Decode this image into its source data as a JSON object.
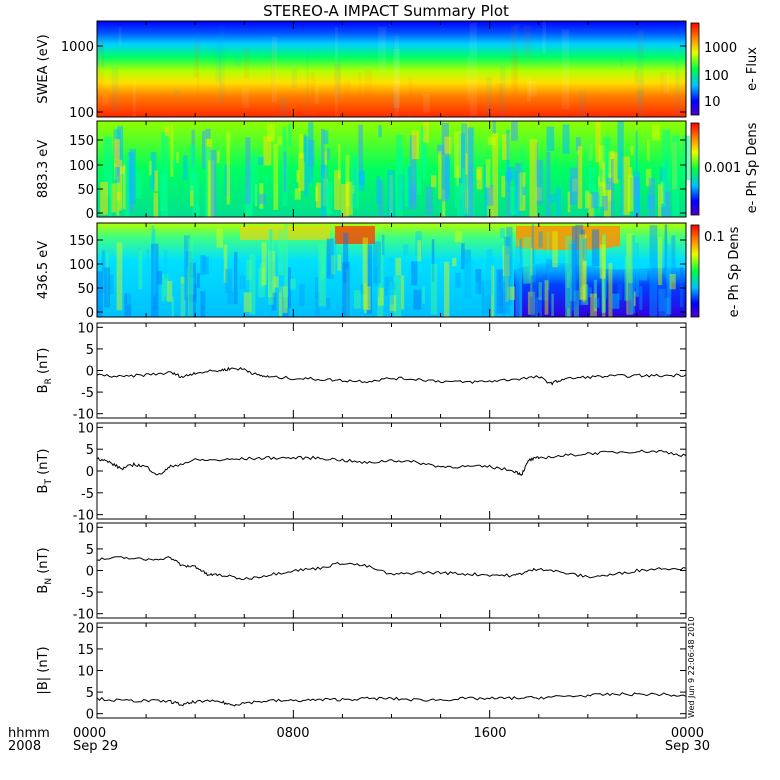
{
  "chart_data": {
    "title": "STEREO-A IMPACT Summary Plot",
    "x_axis": {
      "range": [
        "2008-09-29T00:00",
        "2008-09-30T00:00"
      ],
      "tick_times": [
        "0000",
        "0800",
        "1600",
        "0000"
      ],
      "tick_dates": [
        "Sep 29",
        "",
        "",
        "Sep 30"
      ],
      "label_line1": "hhmm",
      "label_line2": "2008"
    },
    "timestamp": "Wed Jun 9 22:06:48 2010",
    "spectrograms": [
      {
        "name": "swea",
        "type": "heatmap",
        "ylabel": "SWEA (eV)",
        "y_scale": "log",
        "ylim": [
          100,
          1900
        ],
        "y_ticks": [
          "1000",
          "100"
        ],
        "colorbar_label": "e- Flux",
        "colorbar_ticks": [
          "1000",
          "100",
          "10"
        ],
        "color_scale": "rainbow (blue=low, red=high)"
      },
      {
        "name": "pad_883",
        "type": "heatmap",
        "ylabel": "883.3 eV",
        "ylim": [
          0,
          180
        ],
        "y_ticks": [
          "150",
          "100",
          "50",
          "0"
        ],
        "colorbar_label": "e- Ph Sp Dens",
        "colorbar_ticks": [
          "0.001"
        ]
      },
      {
        "name": "pad_436",
        "type": "heatmap",
        "ylabel": "436.5 eV",
        "ylim": [
          0,
          180
        ],
        "y_ticks": [
          "150",
          "100",
          "50",
          "0"
        ],
        "colorbar_label": "e- Ph Sp Dens",
        "colorbar_ticks": [
          "0.1"
        ]
      }
    ],
    "line_panels": [
      {
        "name": "BR",
        "type": "line",
        "ylabel_main": "B",
        "ylabel_sub": "R",
        "ylabel_unit": " (nT)",
        "ylim": [
          -11,
          11
        ],
        "y_ticks": [
          "10",
          "5",
          "0",
          "-5",
          "-10"
        ],
        "hours": [
          0,
          1,
          2,
          3,
          3.5,
          4,
          5,
          5.5,
          6,
          6.5,
          7,
          8,
          9,
          10,
          11,
          12,
          13,
          14,
          15,
          16,
          17,
          18,
          18.5,
          19,
          20,
          21,
          22,
          23,
          24
        ],
        "values": [
          -1.0,
          -1.5,
          -1.0,
          -0.5,
          -1.5,
          -0.5,
          0.0,
          0.5,
          0.3,
          -1.0,
          -1.5,
          -1.8,
          -2.0,
          -2.3,
          -2.5,
          -1.8,
          -2.0,
          -2.5,
          -2.7,
          -2.5,
          -2.0,
          -1.5,
          -3.0,
          -2.0,
          -1.5,
          -1.3,
          -1.2,
          -1.2,
          -1.0
        ]
      },
      {
        "name": "BT",
        "type": "line",
        "ylabel_main": "B",
        "ylabel_sub": "T",
        "ylabel_unit": " (nT)",
        "ylim": [
          -11,
          11
        ],
        "y_ticks": [
          "10",
          "5",
          "0",
          "-5",
          "-10"
        ],
        "hours": [
          0,
          0.5,
          1,
          1.5,
          2,
          2.5,
          3,
          4,
          5,
          6,
          7,
          8,
          9,
          10,
          11,
          12,
          13,
          14,
          15,
          16,
          17,
          17.3,
          17.6,
          18,
          19,
          20,
          21,
          22,
          23,
          24
        ],
        "values": [
          3.0,
          2.0,
          0.5,
          1.5,
          1.0,
          -1.0,
          1.0,
          2.5,
          2.5,
          2.8,
          3.0,
          3.0,
          3.0,
          2.5,
          1.8,
          2.5,
          2.0,
          1.0,
          1.0,
          1.0,
          0.0,
          -0.8,
          2.5,
          3.0,
          3.5,
          4.0,
          4.3,
          4.5,
          4.5,
          3.5
        ]
      },
      {
        "name": "BN",
        "type": "line",
        "ylabel_main": "B",
        "ylabel_sub": "N",
        "ylabel_unit": " (nT)",
        "ylim": [
          -11,
          11
        ],
        "y_ticks": [
          "10",
          "5",
          "0",
          "-5",
          "-10"
        ],
        "hours": [
          0,
          1,
          2,
          3,
          3.5,
          4,
          4.5,
          5,
          6,
          7,
          8,
          9,
          10,
          11,
          12,
          13,
          14,
          15,
          16,
          17,
          17.5,
          18,
          19,
          20,
          21,
          22,
          23,
          24
        ],
        "values": [
          2.5,
          3.0,
          2.5,
          3.0,
          1.0,
          1.0,
          -1.0,
          -1.0,
          -2.0,
          -1.0,
          0.0,
          0.5,
          1.8,
          1.0,
          -1.0,
          -0.5,
          -0.5,
          -0.8,
          -1.0,
          -1.2,
          -0.3,
          0.5,
          -0.5,
          -1.5,
          -1.0,
          0.0,
          0.5,
          0.5
        ]
      },
      {
        "name": "B",
        "type": "line",
        "ylabel_main": "|B| (nT)",
        "ylabel_sub": "",
        "ylabel_unit": "",
        "ylim": [
          -1,
          21
        ],
        "y_ticks": [
          "20",
          "15",
          "10",
          "5",
          "0"
        ],
        "hours": [
          0,
          1,
          2,
          3,
          3.5,
          4,
          5,
          5.5,
          6,
          7,
          8,
          9,
          10,
          11,
          12,
          13,
          14,
          15,
          16,
          17,
          18,
          19,
          20,
          21,
          22,
          23,
          24
        ],
        "values": [
          3.5,
          3.0,
          3.0,
          2.8,
          2.0,
          2.8,
          2.8,
          2.0,
          2.5,
          3.0,
          3.0,
          3.2,
          3.3,
          3.5,
          3.5,
          3.2,
          3.2,
          3.5,
          3.5,
          3.6,
          3.7,
          4.0,
          4.2,
          4.5,
          4.5,
          4.5,
          4.0
        ]
      }
    ]
  }
}
